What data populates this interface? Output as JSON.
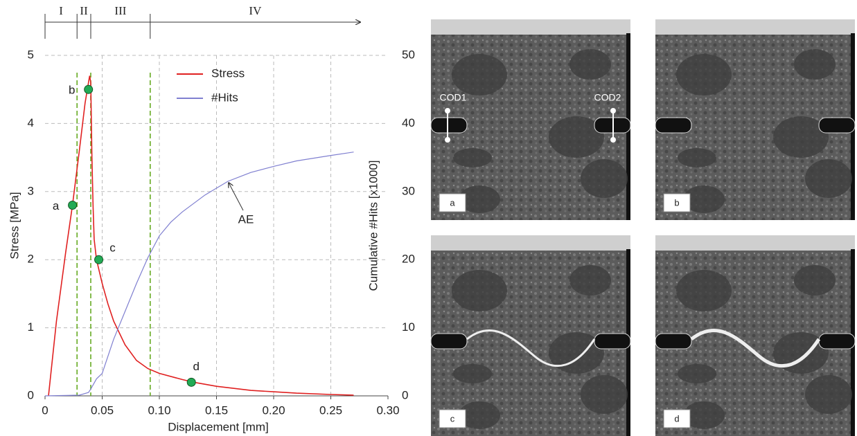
{
  "chart_data": {
    "type": "line",
    "xlabel": "Displacement [mm]",
    "ylabel": "Stress [MPa]",
    "y2label": "Cumulative #Hits [x1000]",
    "xlim": [
      0,
      0.3
    ],
    "xticks": [
      0,
      0.05,
      {
        "value": 0.1,
        "label": "0.10"
      },
      0.15,
      {
        "value": 0.2,
        "label": "0.20"
      },
      0.25,
      {
        "value": 0.3,
        "label": "0.30"
      }
    ],
    "ylim": [
      0,
      5
    ],
    "yticks": [
      0,
      1,
      2,
      3,
      4,
      5
    ],
    "y2lim": [
      0,
      50
    ],
    "y2ticks": [
      0,
      10,
      20,
      30,
      40,
      50
    ],
    "grid": true,
    "legend": "upper center",
    "series": [
      {
        "name": "Stress",
        "color": "#e02020",
        "x": [
          0.003,
          0.01,
          0.018,
          0.024,
          0.03,
          0.035,
          0.038,
          0.039,
          0.04,
          0.041,
          0.042,
          0.043,
          0.045,
          0.05,
          0.055,
          0.06,
          0.07,
          0.08,
          0.09,
          0.1,
          0.12,
          0.13,
          0.15,
          0.18,
          0.2,
          0.22,
          0.25,
          0.27
        ],
        "values": [
          0,
          1.1,
          2.1,
          2.8,
          3.6,
          4.3,
          4.6,
          4.7,
          4.6,
          3.5,
          2.8,
          2.3,
          2.0,
          1.65,
          1.35,
          1.1,
          0.75,
          0.52,
          0.4,
          0.33,
          0.24,
          0.2,
          0.14,
          0.08,
          0.06,
          0.04,
          0.02,
          0.01
        ]
      },
      {
        "name": "#Hits",
        "color": "#7f7fd0",
        "axis": "y2",
        "x": [
          0,
          0.03,
          0.038,
          0.04,
          0.045,
          0.05,
          0.06,
          0.07,
          0.08,
          0.09,
          0.1,
          0.11,
          0.12,
          0.14,
          0.16,
          0.18,
          0.2,
          0.22,
          0.25,
          0.27
        ],
        "values": [
          0,
          0.1,
          0.5,
          1,
          2.5,
          3.3,
          8.3,
          12.4,
          16.5,
          20.3,
          23.5,
          25.5,
          27,
          29.5,
          31.5,
          32.8,
          33.7,
          34.5,
          35.3,
          35.8
        ]
      }
    ],
    "points": {
      "color": "#22aa55",
      "labels": [
        "a",
        "b",
        "c",
        "d"
      ],
      "x": [
        0.024,
        0.038,
        0.047,
        0.128
      ],
      "values": [
        2.8,
        4.5,
        2.0,
        0.2
      ]
    },
    "phases": {
      "labels": [
        "I",
        "II",
        "III",
        "IV"
      ],
      "bounds": [
        0,
        0.028,
        0.04,
        0.092
      ],
      "color": "#66aa22"
    },
    "annotation": {
      "text": "AE",
      "x": 0.16,
      "value": 31.5
    }
  },
  "images": {
    "labels": [
      "a",
      "b",
      "c",
      "d"
    ],
    "cod_labels": [
      "COD1",
      "COD2"
    ]
  }
}
